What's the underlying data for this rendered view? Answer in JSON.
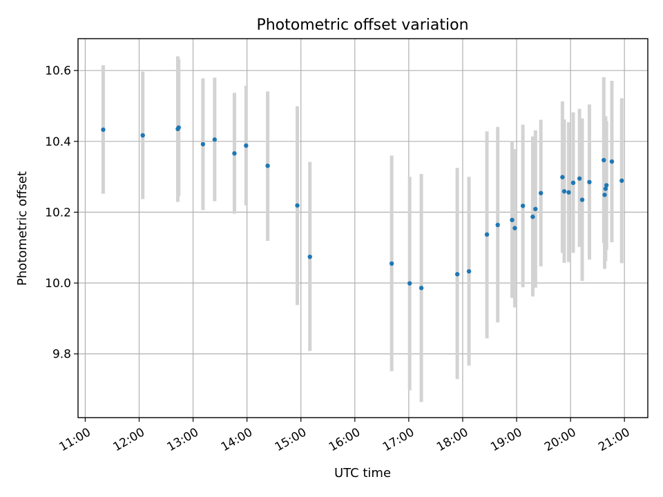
{
  "chart_data": {
    "type": "scatter",
    "title": "Photometric offset variation",
    "xlabel": "UTC time",
    "ylabel": "Photometric offset",
    "x_ticks": [
      "11:00",
      "12:00",
      "13:00",
      "14:00",
      "15:00",
      "16:00",
      "17:00",
      "18:00",
      "19:00",
      "20:00",
      "21:00"
    ],
    "y_ticks": [
      "9.8",
      "10.0",
      "10.2",
      "10.4",
      "10.6"
    ],
    "y_tick_values": [
      9.8,
      10.0,
      10.2,
      10.4,
      10.6
    ],
    "xlim": [
      "10:52",
      "21:26"
    ],
    "ylim": [
      9.62,
      10.69
    ],
    "grid": true,
    "colors": {
      "point": "#1f77b4",
      "errorbar": "#d3d3d3",
      "grid": "#b0b0b0"
    },
    "points": [
      {
        "t": "11:20",
        "y": 10.433,
        "lo": 10.252,
        "hi": 10.615
      },
      {
        "t": "12:04",
        "y": 10.417,
        "lo": 10.237,
        "hi": 10.597
      },
      {
        "t": "12:43",
        "y": 10.435,
        "lo": 10.229,
        "hi": 10.64
      },
      {
        "t": "12:44",
        "y": 10.439,
        "lo": 10.245,
        "hi": 10.632
      },
      {
        "t": "13:11",
        "y": 10.392,
        "lo": 10.206,
        "hi": 10.578
      },
      {
        "t": "13:24",
        "y": 10.405,
        "lo": 10.231,
        "hi": 10.58
      },
      {
        "t": "13:46",
        "y": 10.366,
        "lo": 10.196,
        "hi": 10.537
      },
      {
        "t": "13:59",
        "y": 10.388,
        "lo": 10.219,
        "hi": 10.557
      },
      {
        "t": "14:23",
        "y": 10.331,
        "lo": 10.119,
        "hi": 10.541
      },
      {
        "t": "14:56",
        "y": 10.219,
        "lo": 9.938,
        "hi": 10.499
      },
      {
        "t": "15:10",
        "y": 10.074,
        "lo": 9.808,
        "hi": 10.342
      },
      {
        "t": "16:41",
        "y": 10.055,
        "lo": 9.751,
        "hi": 10.36
      },
      {
        "t": "17:01",
        "y": 9.999,
        "lo": 9.697,
        "hi": 10.3
      },
      {
        "t": "17:14",
        "y": 9.986,
        "lo": 9.664,
        "hi": 10.308
      },
      {
        "t": "17:54",
        "y": 10.025,
        "lo": 9.729,
        "hi": 10.325
      },
      {
        "t": "18:07",
        "y": 10.033,
        "lo": 9.767,
        "hi": 10.3
      },
      {
        "t": "18:27",
        "y": 10.137,
        "lo": 9.844,
        "hi": 10.428
      },
      {
        "t": "18:39",
        "y": 10.164,
        "lo": 9.889,
        "hi": 10.441
      },
      {
        "t": "18:55",
        "y": 10.178,
        "lo": 9.958,
        "hi": 10.401
      },
      {
        "t": "18:58",
        "y": 10.155,
        "lo": 9.931,
        "hi": 10.378
      },
      {
        "t": "19:07",
        "y": 10.218,
        "lo": 9.988,
        "hi": 10.447
      },
      {
        "t": "19:18",
        "y": 10.187,
        "lo": 9.962,
        "hi": 10.414
      },
      {
        "t": "19:21",
        "y": 10.209,
        "lo": 9.987,
        "hi": 10.431
      },
      {
        "t": "19:27",
        "y": 10.254,
        "lo": 10.047,
        "hi": 10.461
      },
      {
        "t": "19:51",
        "y": 10.299,
        "lo": 10.085,
        "hi": 10.513
      },
      {
        "t": "19:53",
        "y": 10.259,
        "lo": 10.057,
        "hi": 10.462
      },
      {
        "t": "19:58",
        "y": 10.256,
        "lo": 10.059,
        "hi": 10.454
      },
      {
        "t": "20:03",
        "y": 10.283,
        "lo": 10.085,
        "hi": 10.482
      },
      {
        "t": "20:10",
        "y": 10.295,
        "lo": 10.102,
        "hi": 10.492
      },
      {
        "t": "20:13",
        "y": 10.235,
        "lo": 10.006,
        "hi": 10.465
      },
      {
        "t": "20:21",
        "y": 10.285,
        "lo": 10.066,
        "hi": 10.504
      },
      {
        "t": "20:37",
        "y": 10.347,
        "lo": 10.113,
        "hi": 10.581
      },
      {
        "t": "20:38",
        "y": 10.249,
        "lo": 10.04,
        "hi": 10.458
      },
      {
        "t": "20:39",
        "y": 10.266,
        "lo": 10.062,
        "hi": 10.471
      },
      {
        "t": "20:40",
        "y": 10.276,
        "lo": 10.093,
        "hi": 10.457
      },
      {
        "t": "20:46",
        "y": 10.343,
        "lo": 10.115,
        "hi": 10.571
      },
      {
        "t": "20:57",
        "y": 10.289,
        "lo": 10.056,
        "hi": 10.522
      }
    ]
  }
}
